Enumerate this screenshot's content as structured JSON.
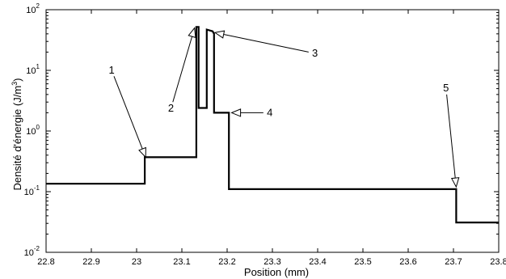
{
  "chart_data": {
    "type": "line",
    "xlabel": "Position (mm)",
    "ylabel_main": "Densité d'énergie (J/m",
    "ylabel_sup": "3",
    "ylabel_close": ")",
    "xlim": [
      22.8,
      23.8
    ],
    "ylim": [
      0.01,
      100
    ],
    "yscale": "log",
    "grid": false,
    "xticks": [
      22.8,
      22.9,
      23.0,
      23.1,
      23.2,
      23.3,
      23.4,
      23.5,
      23.6,
      23.7,
      23.8
    ],
    "xtick_labels": [
      "22.8",
      "22.9",
      "23",
      "23.1",
      "23.2",
      "23.3",
      "23.4",
      "23.5",
      "23.6",
      "23.7",
      "23.8"
    ],
    "yticks": [
      0.01,
      0.1,
      1,
      10,
      100
    ],
    "ytick_bases": [
      "10",
      "10",
      "10",
      "10",
      "10"
    ],
    "ytick_exps": [
      "-2",
      "-1",
      "0",
      "1",
      "2"
    ],
    "series": [
      {
        "color": "#000000",
        "x": [
          22.8,
          23.018,
          23.018,
          23.132,
          23.132,
          23.137,
          23.137,
          23.155,
          23.155,
          23.168,
          23.171,
          23.171,
          23.204,
          23.204,
          23.706,
          23.706,
          23.8
        ],
        "y": [
          0.135,
          0.135,
          0.37,
          0.37,
          52,
          52,
          2.4,
          2.4,
          47,
          44,
          40,
          2.0,
          2.0,
          0.11,
          0.11,
          0.031,
          0.031
        ]
      }
    ],
    "annotations": [
      {
        "label": "1",
        "tip": [
          23.02,
          0.37
        ],
        "tail": [
          22.95,
          8.0
        ]
      },
      {
        "label": "2",
        "tip": [
          23.128,
          50
        ],
        "tail": [
          23.08,
          3.0
        ]
      },
      {
        "label": "3",
        "tip": [
          23.173,
          42
        ],
        "tail": [
          23.38,
          20
        ]
      },
      {
        "label": "4",
        "tip": [
          23.21,
          2.0
        ],
        "tail": [
          23.28,
          2.0
        ]
      },
      {
        "label": "5",
        "tip": [
          23.706,
          0.12
        ],
        "tail": [
          23.685,
          4.0
        ]
      }
    ]
  }
}
